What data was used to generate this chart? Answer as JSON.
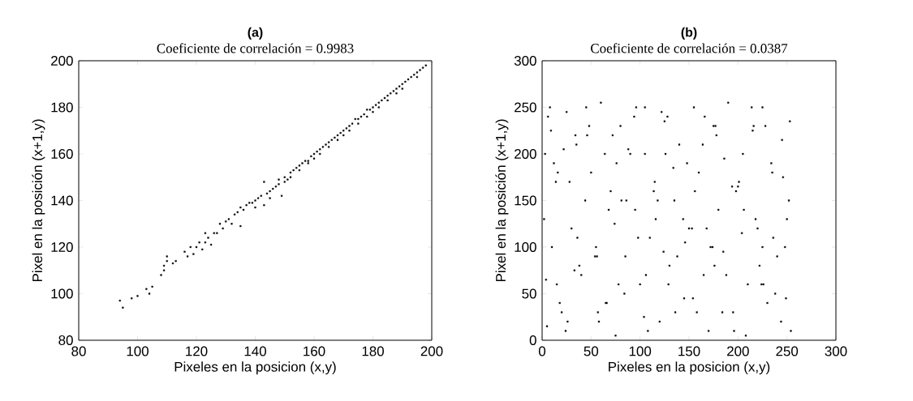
{
  "chart_data": [
    {
      "type": "scatter",
      "title": "(a)",
      "subtitle": "Coeficiente de correlación = 0.9983",
      "xlabel": "Pixeles en la posicion (x,y)",
      "ylabel": "Pixel en la posición (x+1,y)",
      "xlim": [
        80,
        200
      ],
      "ylim": [
        80,
        200
      ],
      "xticks": [
        80,
        100,
        120,
        140,
        160,
        180,
        200
      ],
      "yticks": [
        80,
        100,
        120,
        140,
        160,
        180,
        200
      ],
      "marker": "square",
      "grid": false,
      "series": [
        {
          "color": "#000000",
          "x": [
            94,
            95,
            98,
            100,
            103,
            104,
            105,
            108,
            109,
            109,
            110,
            110,
            112,
            113,
            116,
            117,
            118,
            119,
            120,
            121,
            122,
            123,
            123,
            124,
            125,
            126,
            127,
            128,
            129,
            130,
            131,
            132,
            133,
            134,
            135,
            135,
            136,
            137,
            138,
            139,
            140,
            141,
            142,
            143,
            143,
            144,
            145,
            146,
            147,
            148,
            148,
            149,
            150,
            151,
            152,
            153,
            154,
            155,
            156,
            157,
            158,
            159,
            160,
            161,
            162,
            163,
            164,
            165,
            166,
            167,
            168,
            169,
            170,
            171,
            172,
            173,
            174,
            175,
            176,
            177,
            178,
            179,
            180,
            181,
            182,
            183,
            184,
            185,
            186,
            187,
            188,
            189,
            190,
            191,
            192,
            193,
            194,
            195,
            196,
            197,
            198,
            150,
            155,
            160,
            165,
            170,
            175,
            180,
            185,
            190,
            195,
            145,
            140,
            152,
            158,
            162,
            168,
            172,
            178,
            182,
            188
          ],
          "values": [
            97,
            94,
            98,
            99,
            102,
            100,
            103,
            108,
            110,
            112,
            114,
            116,
            113,
            114,
            118,
            116,
            120,
            117,
            120,
            122,
            119,
            122,
            126,
            124,
            121,
            126,
            126,
            130,
            128,
            131,
            132,
            130,
            134,
            135,
            129,
            137,
            136,
            138,
            139,
            139,
            140,
            141,
            142,
            148,
            138,
            143,
            144,
            145,
            146,
            149,
            147,
            142,
            150,
            149,
            152,
            153,
            154,
            155,
            156,
            157,
            157,
            159,
            160,
            161,
            162,
            163,
            164,
            165,
            166,
            167,
            168,
            169,
            170,
            171,
            172,
            173,
            175,
            175,
            176,
            177,
            179,
            179,
            180,
            181,
            182,
            183,
            184,
            185,
            186,
            187,
            188,
            189,
            190,
            191,
            192,
            193,
            194,
            195,
            196,
            197,
            198,
            148,
            153,
            158,
            163,
            168,
            173,
            178,
            183,
            188,
            193,
            141,
            137,
            150,
            156,
            160,
            166,
            170,
            176,
            180,
            186
          ]
        }
      ]
    },
    {
      "type": "scatter",
      "title": "(b)",
      "subtitle": "Coeficiente de correlación = 0.0387",
      "xlabel": "Pixeles en la posicion (x,y)",
      "ylabel": "Pixel en la posición (x+1,y)",
      "xlim": [
        0,
        300
      ],
      "ylim": [
        0,
        300
      ],
      "xticks": [
        0,
        50,
        100,
        150,
        200,
        250,
        300
      ],
      "yticks": [
        0,
        50,
        100,
        150,
        200,
        250,
        300
      ],
      "marker": "square",
      "grid": false,
      "series": [
        {
          "color": "#000000",
          "x": [
            2,
            5,
            8,
            12,
            15,
            20,
            25,
            30,
            35,
            40,
            45,
            50,
            55,
            60,
            65,
            70,
            75,
            80,
            85,
            90,
            95,
            100,
            105,
            110,
            115,
            120,
            125,
            130,
            135,
            140,
            145,
            150,
            155,
            160,
            165,
            170,
            175,
            180,
            185,
            190,
            195,
            200,
            205,
            210,
            215,
            220,
            225,
            230,
            235,
            240,
            245,
            250,
            254,
            3,
            10,
            18,
            28,
            38,
            48,
            58,
            68,
            78,
            88,
            98,
            108,
            118,
            128,
            138,
            148,
            158,
            168,
            178,
            188,
            198,
            208,
            218,
            228,
            238,
            248,
            6,
            16,
            26,
            36,
            46,
            56,
            66,
            76,
            86,
            96,
            106,
            116,
            126,
            136,
            146,
            156,
            166,
            176,
            186,
            196,
            206,
            216,
            226,
            236,
            246,
            253,
            4,
            14,
            24,
            34,
            44,
            54,
            64,
            74,
            84,
            94,
            104,
            114,
            124,
            134,
            144,
            154,
            164,
            174,
            184,
            194,
            204,
            214,
            224,
            234,
            244,
            252,
            9,
            33,
            57,
            81,
            105,
            129,
            153,
            177,
            201,
            225,
            249,
            22,
            72,
            122,
            172,
            222
          ],
          "values": [
            130,
            15,
            250,
            190,
            60,
            30,
            245,
            120,
            210,
            70,
            250,
            180,
            100,
            255,
            40,
            160,
            5,
            230,
            90,
            200,
            140,
            60,
            250,
            110,
            170,
            20,
            235,
            80,
            150,
            210,
            45,
            120,
            250,
            180,
            70,
            10,
            230,
            140,
            95,
            255,
            30,
            165,
            200,
            60,
            225,
            120,
            250,
            40,
            180,
            90,
            215,
            130,
            10,
            200,
            100,
            40,
            170,
            80,
            230,
            20,
            140,
            60,
            205,
            110,
            10,
            150,
            240,
            90,
            190,
            30,
            120,
            220,
            70,
            160,
            5,
            130,
            230,
            50,
            100,
            240,
            180,
            20,
            110,
            220,
            90,
            40,
            190,
            150,
            250,
            70,
            130,
            200,
            30,
            105,
            160,
            240,
            80,
            195,
            10,
            140,
            230,
            60,
            110,
            175,
            235,
            65,
            170,
            10,
            220,
            150,
            90,
            200,
            125,
            50,
            240,
            25,
            160,
            95,
            185,
            130,
            45,
            210,
            100,
            30,
            165,
            115,
            250,
            60,
            190,
            20,
            150,
            225,
            75,
            30,
            150,
            200,
            60,
            120,
            230,
            170,
            100,
            45,
            205,
            220,
            245,
            100,
            80
          ]
        }
      ]
    }
  ]
}
